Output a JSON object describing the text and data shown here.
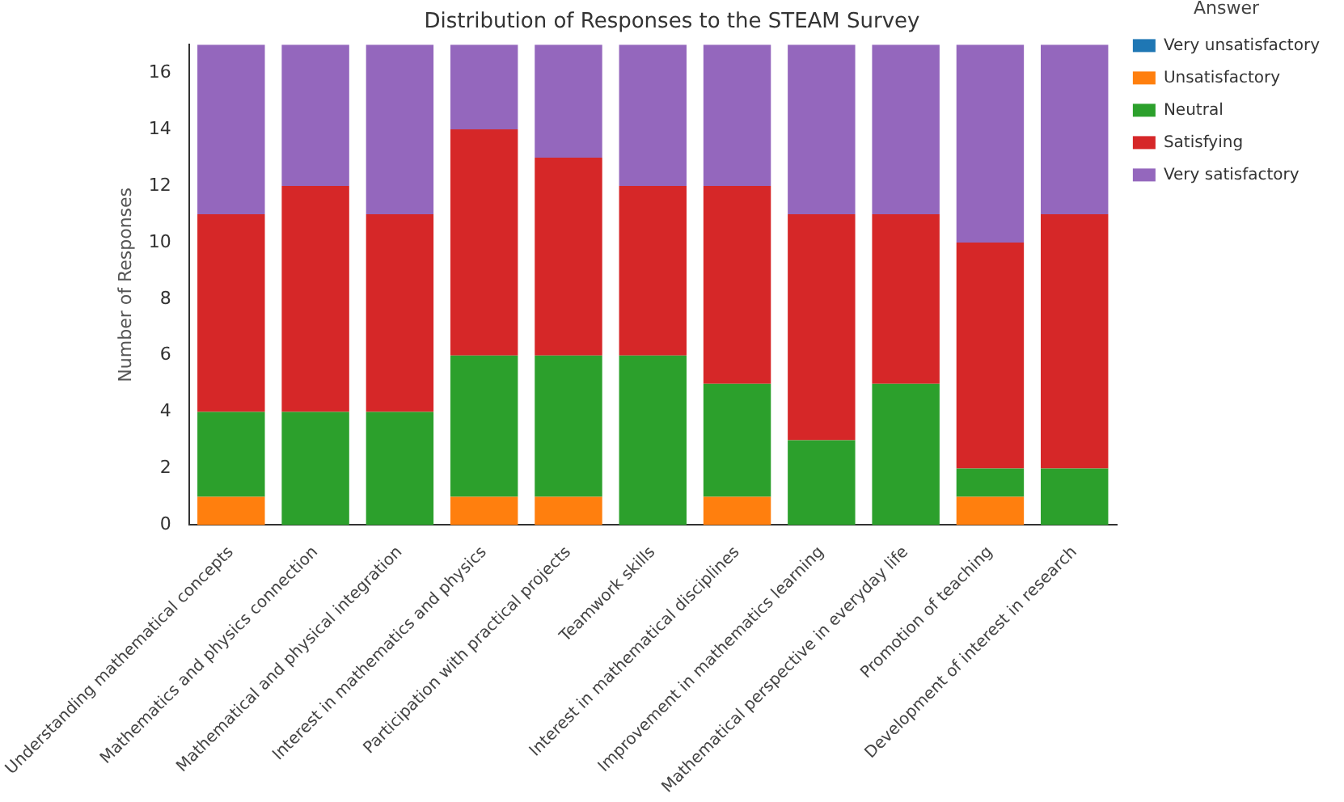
{
  "chart_data": {
    "type": "bar",
    "title": "Distribution of Responses to the STEAM Survey",
    "ylabel": "Number of Responses",
    "legend_title": "Answer",
    "categories": [
      "Understanding mathematical concepts",
      "Mathematics and physics connection",
      "Mathematical and physical integration",
      "Interest in mathematics and physics",
      "Participation with practical projects",
      "Teamwork skills",
      "Interest in mathematical disciplines",
      "Improvement in mathematics learning",
      "Mathematical perspective in everyday life",
      "Promotion of teaching",
      "Development of interest in research"
    ],
    "stacked": true,
    "series": [
      {
        "name": "Very unsatisfactory",
        "color": "#1f77b4",
        "values": [
          0,
          0,
          0,
          0,
          0,
          0,
          0,
          0,
          0,
          0,
          0
        ]
      },
      {
        "name": "Unsatisfactory",
        "color": "#ff7f0e",
        "values": [
          1,
          0,
          0,
          1,
          1,
          0,
          1,
          0,
          0,
          1,
          0
        ]
      },
      {
        "name": "Neutral",
        "color": "#2ca02c",
        "values": [
          3,
          4,
          4,
          5,
          5,
          6,
          4,
          3,
          5,
          1,
          2
        ]
      },
      {
        "name": "Satisfying",
        "color": "#d62728",
        "values": [
          7,
          8,
          7,
          8,
          7,
          6,
          7,
          8,
          6,
          8,
          9
        ]
      },
      {
        "name": "Very satisfactory",
        "color": "#9467bd",
        "values": [
          6,
          5,
          6,
          3,
          4,
          5,
          5,
          6,
          6,
          7,
          6
        ]
      }
    ],
    "ylim": [
      0,
      17
    ],
    "yticks": [
      0,
      2,
      4,
      6,
      8,
      10,
      12,
      14,
      16
    ],
    "grid": false,
    "legend": "top right"
  }
}
